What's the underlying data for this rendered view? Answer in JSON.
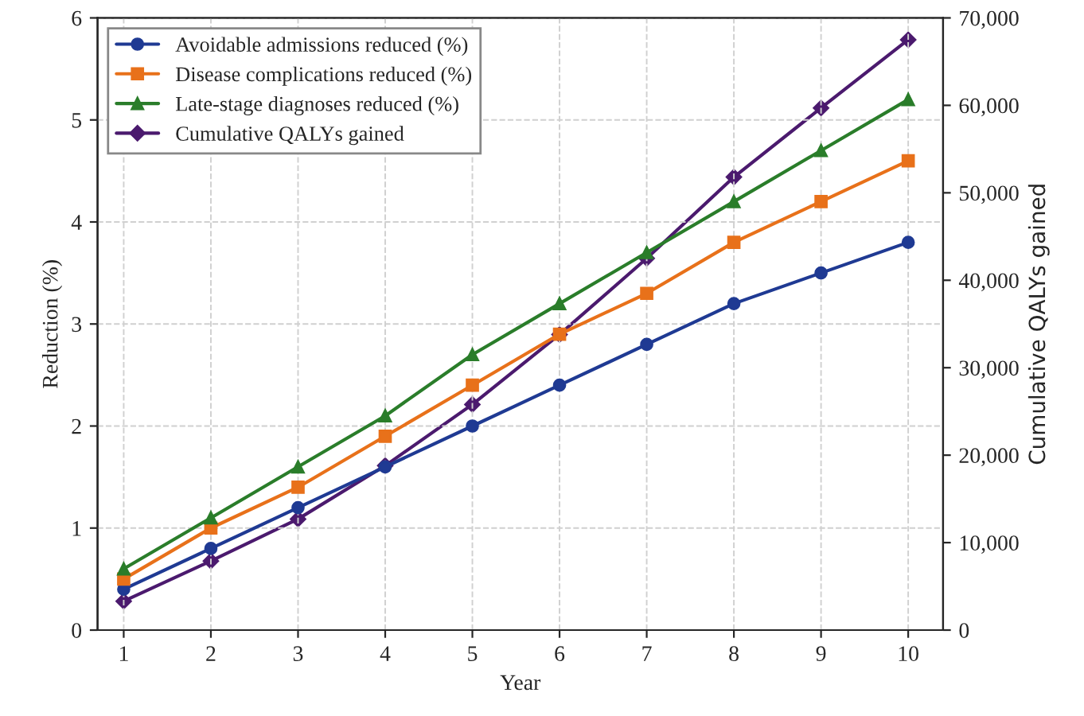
{
  "chart_data": {
    "type": "line",
    "xlabel": "Year",
    "ylabel": "Reduction (%)",
    "y2label": "Cumulative QALYs gained",
    "x": [
      1,
      2,
      3,
      4,
      5,
      6,
      7,
      8,
      9,
      10
    ],
    "series": [
      {
        "name": "Avoidable admissions reduced (%)",
        "color": "#1f3a93",
        "marker": "circle",
        "values": [
          0.4,
          0.8,
          1.2,
          1.6,
          2.0,
          2.4,
          2.8,
          3.2,
          3.5,
          3.8
        ]
      },
      {
        "name": "Disease complications reduced (%)",
        "color": "#e8711a",
        "marker": "square",
        "values": [
          0.5,
          1.0,
          1.4,
          1.9,
          2.4,
          2.9,
          3.3,
          3.8,
          4.2,
          4.6
        ]
      },
      {
        "name": "Late-stage diagnoses reduced (%)",
        "color": "#2a7d2a",
        "marker": "triangle",
        "values": [
          0.6,
          1.1,
          1.6,
          2.1,
          2.7,
          3.2,
          3.7,
          4.2,
          4.7,
          5.2
        ]
      },
      {
        "name": "Cumulative QALYs gained",
        "color": "#4b1a6e",
        "marker": "diamond",
        "axis": "y2",
        "values": [
          3300,
          7900,
          12700,
          18800,
          25800,
          33800,
          42500,
          51800,
          59700,
          67500
        ]
      }
    ],
    "xlim": [
      0.7,
      10.4
    ],
    "xticks": [
      1,
      2,
      3,
      4,
      5,
      6,
      7,
      8,
      9,
      10
    ],
    "ylim": [
      0,
      6
    ],
    "yticks": [
      0,
      1,
      2,
      3,
      4,
      5,
      6
    ],
    "y2lim": [
      0,
      70000
    ],
    "y2ticks": [
      {
        "value": 0,
        "label": "0"
      },
      {
        "value": 10000,
        "label": "10,000"
      },
      {
        "value": 20000,
        "label": "20,000"
      },
      {
        "value": 30000,
        "label": "30,000"
      },
      {
        "value": 40000,
        "label": "40,000"
      },
      {
        "value": 50000,
        "label": "50,000"
      },
      {
        "value": 60000,
        "label": "60,000"
      },
      {
        "value": 70000,
        "label": "70,000"
      }
    ],
    "grid": true,
    "legend": "top left",
    "line_style": "solid"
  }
}
